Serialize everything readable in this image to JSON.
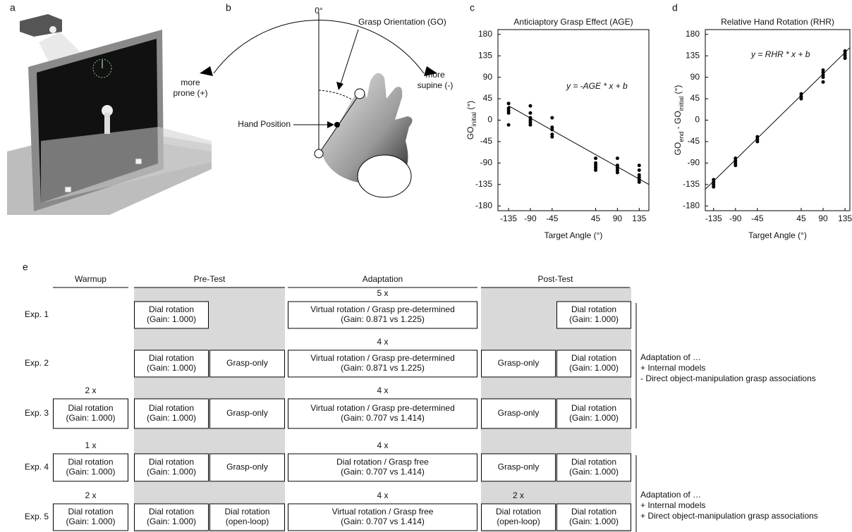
{
  "panel_labels": [
    "a",
    "b",
    "c",
    "d",
    "e"
  ],
  "panel_b": {
    "zero": "0°",
    "go": "Grasp Orientation (GO)",
    "prone": [
      "more",
      "prone (+)"
    ],
    "supine": [
      "more",
      "supine (-)"
    ],
    "hand": "Hand Position"
  },
  "chart_data": [
    {
      "type": "scatter",
      "title": "Anticiaptory Grasp Effect (AGE)",
      "equation": "y = -AGE * x + b",
      "ylabel": [
        "GO",
        "initial",
        " (°)"
      ],
      "xlabel": "Target Angle (°)",
      "xlim": [
        -157,
        155
      ],
      "ylim": [
        -190,
        190
      ],
      "xticks": [
        -135,
        -90,
        -45,
        45,
        90,
        135
      ],
      "yticks": [
        -180,
        -135,
        -90,
        -45,
        0,
        45,
        90,
        135,
        180
      ],
      "color": "#000000",
      "x": [
        -135,
        -135,
        -135,
        -135,
        -135,
        -90,
        -90,
        -90,
        -90,
        -90,
        -90,
        -45,
        -45,
        -45,
        -45,
        -45,
        45,
        45,
        45,
        45,
        45,
        90,
        90,
        90,
        90,
        90,
        135,
        135,
        135,
        135,
        135,
        135
      ],
      "y": [
        35,
        25,
        20,
        15,
        -10,
        30,
        15,
        5,
        0,
        -5,
        -10,
        5,
        -15,
        -20,
        -30,
        -35,
        -80,
        -90,
        -95,
        -100,
        -105,
        -80,
        -95,
        -100,
        -105,
        -110,
        -95,
        -105,
        -115,
        -120,
        -125,
        -130
      ],
      "fit": {
        "x": [
          -135,
          155
        ],
        "y": [
          30,
          -135
        ]
      }
    },
    {
      "type": "scatter",
      "title": "Relative Hand Rotation (RHR)",
      "equation": "y = RHR * x + b",
      "ylabel": [
        "GO",
        "end",
        " - GO",
        "initial",
        " (°)"
      ],
      "xlabel": "Target Angle (°)",
      "xlim": [
        -152,
        145
      ],
      "ylim": [
        -190,
        190
      ],
      "xticks": [
        -135,
        -90,
        -45,
        45,
        90,
        135
      ],
      "yticks": [
        -180,
        -135,
        -90,
        -45,
        0,
        45,
        90,
        135,
        180
      ],
      "color": "#000000",
      "x": [
        -135,
        -135,
        -135,
        -135,
        -90,
        -90,
        -90,
        -90,
        -45,
        -45,
        -45,
        45,
        45,
        45,
        90,
        90,
        90,
        90,
        90,
        135,
        135,
        135,
        135
      ],
      "y": [
        -125,
        -130,
        -135,
        -140,
        -80,
        -85,
        -90,
        -95,
        -35,
        -40,
        -45,
        45,
        50,
        55,
        80,
        90,
        95,
        100,
        105,
        130,
        135,
        140,
        145
      ],
      "fit": {
        "x": [
          -152,
          145
        ],
        "y": [
          -145,
          152
        ]
      }
    }
  ],
  "protocol": {
    "columns": [
      "Warmup",
      "Pre-Test",
      "Adaptation",
      "Post-Test"
    ],
    "rows": [
      {
        "label": "Exp. 1",
        "reps": {
          "adaptation": "5 x"
        },
        "cells": {
          "pretest_a": [
            "Dial rotation",
            "(Gain: 1.000)"
          ],
          "adaptation": [
            "Virtual rotation / Grasp pre-determined",
            "(Gain: 0.871 vs 1.225)"
          ],
          "posttest_b": [
            "Dial rotation",
            "(Gain: 1.000)"
          ]
        }
      },
      {
        "label": "Exp. 2",
        "reps": {
          "adaptation": "4 x"
        },
        "cells": {
          "pretest_a": [
            "Dial rotation",
            "(Gain: 1.000)"
          ],
          "pretest_b": [
            "Grasp-only"
          ],
          "adaptation": [
            "Virtual rotation / Grasp pre-determined",
            "(Gain: 0.871 vs 1.225)"
          ],
          "posttest_a": [
            "Grasp-only"
          ],
          "posttest_b": [
            "Dial rotation",
            "(Gain: 1.000)"
          ]
        }
      },
      {
        "label": "Exp. 3",
        "reps": {
          "warmup": "2 x",
          "adaptation": "4 x"
        },
        "cells": {
          "warmup": [
            "Dial rotation",
            "(Gain: 1.000)"
          ],
          "pretest_a": [
            "Dial rotation",
            "(Gain: 1.000)"
          ],
          "pretest_b": [
            "Grasp-only"
          ],
          "adaptation": [
            "Virtual rotation / Grasp pre-determined",
            "(Gain: 0.707 vs 1.414)"
          ],
          "posttest_a": [
            "Grasp-only"
          ],
          "posttest_b": [
            "Dial rotation",
            "(Gain: 1.000)"
          ]
        }
      },
      {
        "label": "Exp. 4",
        "reps": {
          "warmup": "1 x",
          "adaptation": "4 x"
        },
        "cells": {
          "warmup": [
            "Dial rotation",
            "(Gain: 1.000)"
          ],
          "pretest_a": [
            "Dial rotation",
            "(Gain: 1.000)"
          ],
          "pretest_b": [
            "Grasp-only"
          ],
          "adaptation": [
            "Dial rotation / Grasp free",
            "(Gain: 0.707 vs 1.414)"
          ],
          "posttest_a": [
            "Grasp-only"
          ],
          "posttest_b": [
            "Dial rotation",
            "(Gain: 1.000)"
          ]
        }
      },
      {
        "label": "Exp. 5",
        "reps": {
          "warmup": "2 x",
          "adaptation": "4 x",
          "posttest_a": "2 x"
        },
        "cells": {
          "warmup": [
            "Dial rotation",
            "(Gain: 1.000)"
          ],
          "pretest_a": [
            "Dial rotation",
            "(Gain: 1.000)"
          ],
          "pretest_b": [
            "Dial rotation",
            "(open-loop)"
          ],
          "adaptation": [
            "Virtual rotation  / Grasp free",
            "(Gain: 0.707 vs 1.414)"
          ],
          "posttest_a": [
            "Dial rotation",
            "(open-loop)"
          ],
          "posttest_b": [
            "Dial rotation",
            "(Gain: 1.000)"
          ]
        }
      }
    ],
    "notes": [
      [
        "Adaptation of …",
        "+ Internal models",
        "-  Direct object-manipulation grasp associations"
      ],
      [
        "Adaptation of …",
        "+ Internal models",
        "+ Direct object-manipulation grasp associations"
      ]
    ]
  }
}
